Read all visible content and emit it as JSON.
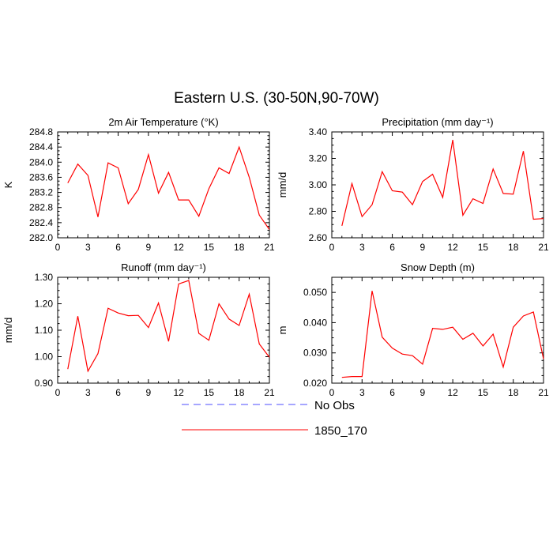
{
  "figure": {
    "title": "Eastern U.S. (30-50N,90-70W)",
    "legend": [
      {
        "label": "No Obs",
        "color": "#4c4cff",
        "dash": true
      },
      {
        "label": "1850_170",
        "color": "#ff0000",
        "dash": false
      }
    ]
  },
  "chart_data": [
    {
      "type": "line",
      "title": "2m Air Temperature (°K)",
      "ylabel": "K",
      "xlim": [
        0,
        21
      ],
      "ylim": [
        282.0,
        284.8
      ],
      "xticks": [
        0,
        3,
        6,
        9,
        12,
        15,
        18,
        21
      ],
      "yticks": [
        282.0,
        282.4,
        282.8,
        283.2,
        283.6,
        284.0,
        284.4,
        284.8
      ],
      "yticklabels": [
        "282.0",
        "282.4",
        "282.8",
        "283.2",
        "283.6",
        "284.0",
        "284.4",
        "284.8"
      ],
      "x": [
        1,
        2,
        3,
        4,
        5,
        6,
        7,
        8,
        9,
        10,
        11,
        12,
        13,
        14,
        15,
        16,
        17,
        18,
        19,
        20,
        21
      ],
      "series": [
        {
          "name": "1850_170",
          "color": "#ff0000",
          "values": [
            283.45,
            283.95,
            283.65,
            282.55,
            283.98,
            283.85,
            282.9,
            283.28,
            284.2,
            283.18,
            283.73,
            283.0,
            283.0,
            282.57,
            283.3,
            283.85,
            283.7,
            284.4,
            283.6,
            282.6,
            282.22
          ]
        }
      ]
    },
    {
      "type": "line",
      "title": "Precipitation (mm day⁻¹)",
      "ylabel": "mm/d",
      "xlim": [
        0,
        21
      ],
      "ylim": [
        2.6,
        3.4
      ],
      "xticks": [
        0,
        3,
        6,
        9,
        12,
        15,
        18,
        21
      ],
      "yticks": [
        2.6,
        2.8,
        3.0,
        3.2,
        3.4
      ],
      "yticklabels": [
        "2.60",
        "2.80",
        "3.00",
        "3.20",
        "3.40"
      ],
      "x": [
        1,
        2,
        3,
        4,
        5,
        6,
        7,
        8,
        9,
        10,
        11,
        12,
        13,
        14,
        15,
        16,
        17,
        18,
        19,
        20,
        21
      ],
      "series": [
        {
          "name": "1850_170",
          "color": "#ff0000",
          "values": [
            2.69,
            3.01,
            2.76,
            2.85,
            3.1,
            2.955,
            2.945,
            2.85,
            3.025,
            3.08,
            2.905,
            3.34,
            2.77,
            2.895,
            2.86,
            3.12,
            2.935,
            2.93,
            3.255,
            2.74,
            2.745
          ]
        }
      ]
    },
    {
      "type": "line",
      "title": "Runoff (mm day⁻¹)",
      "ylabel": "mm/d",
      "xlim": [
        0,
        21
      ],
      "ylim": [
        0.9,
        1.3
      ],
      "xticks": [
        0,
        3,
        6,
        9,
        12,
        15,
        18,
        21
      ],
      "yticks": [
        0.9,
        1.0,
        1.1,
        1.2,
        1.3
      ],
      "yticklabels": [
        "0.90",
        "1.00",
        "1.10",
        "1.20",
        "1.30"
      ],
      "x": [
        1,
        2,
        3,
        4,
        5,
        6,
        7,
        8,
        9,
        10,
        11,
        12,
        13,
        14,
        15,
        16,
        17,
        18,
        19,
        20,
        21
      ],
      "series": [
        {
          "name": "1850_170",
          "color": "#ff0000",
          "values": [
            0.953,
            1.153,
            0.945,
            1.012,
            1.183,
            1.165,
            1.155,
            1.156,
            1.11,
            1.203,
            1.058,
            1.275,
            1.288,
            1.088,
            1.062,
            1.2,
            1.142,
            1.118,
            1.236,
            1.048,
            0.998
          ]
        }
      ]
    },
    {
      "type": "line",
      "title": "Snow Depth (m)",
      "ylabel": "m",
      "xlim": [
        0,
        21
      ],
      "ylim": [
        0.02,
        0.055
      ],
      "xticks": [
        0,
        3,
        6,
        9,
        12,
        15,
        18,
        21
      ],
      "yticks": [
        0.02,
        0.03,
        0.04,
        0.05
      ],
      "yticklabels": [
        "0.020",
        "0.030",
        "0.040",
        "0.050"
      ],
      "x": [
        1,
        2,
        3,
        4,
        5,
        6,
        7,
        8,
        9,
        10,
        11,
        12,
        13,
        14,
        15,
        16,
        17,
        18,
        19,
        20,
        21
      ],
      "series": [
        {
          "name": "1850_170",
          "color": "#ff0000",
          "values": [
            0.0219,
            0.0222,
            0.0222,
            0.0505,
            0.0352,
            0.0316,
            0.0296,
            0.0291,
            0.0263,
            0.0381,
            0.0378,
            0.0385,
            0.0345,
            0.0365,
            0.0323,
            0.0362,
            0.0253,
            0.0385,
            0.0422,
            0.0435,
            0.028
          ]
        }
      ]
    }
  ]
}
